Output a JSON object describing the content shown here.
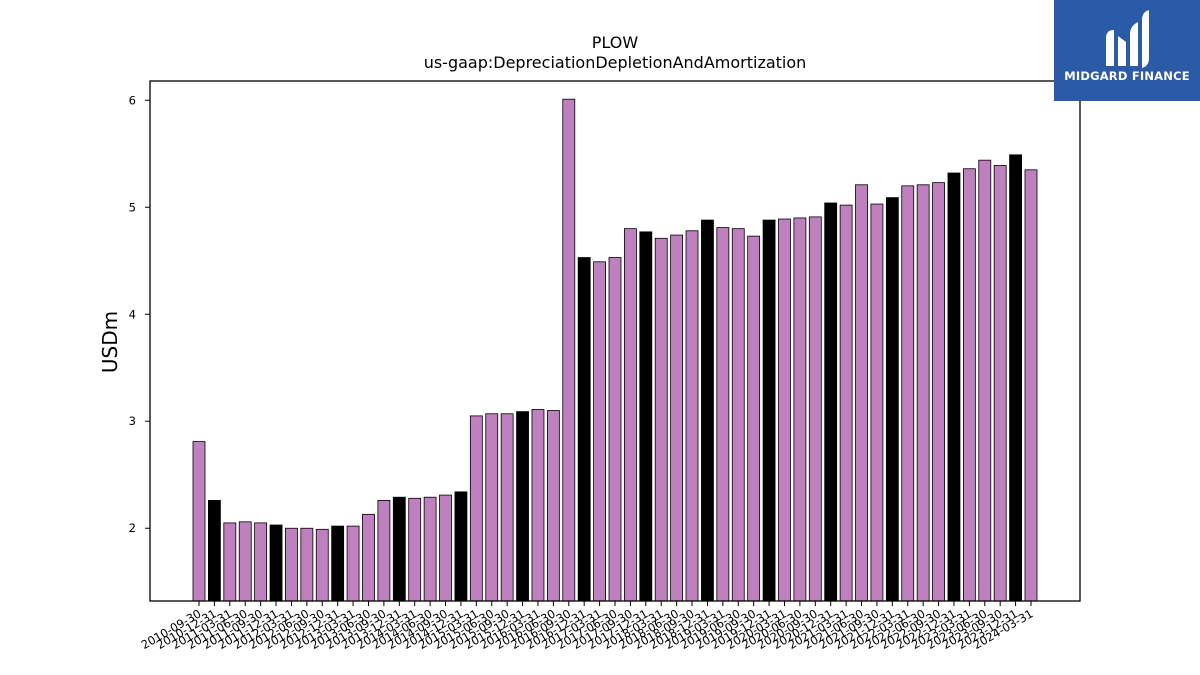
{
  "chart_data": {
    "type": "bar",
    "title": "PLOW",
    "subtitle": "us-gaap:DepreciationDepletionAndAmortization",
    "xlabel": "",
    "ylabel": "USDm",
    "ylim": [
      1.32,
      6.18
    ],
    "yticks": [
      2,
      3,
      4,
      5,
      6
    ],
    "grid": false,
    "colors": {
      "default": "#bf80bf",
      "highlight": "#000000",
      "edge": "#000000"
    },
    "categories": [
      "2010-09-30",
      "2010-12-31",
      "2011-03-31",
      "2011-06-30",
      "2011-09-30",
      "2011-12-31",
      "2012-03-31",
      "2012-06-30",
      "2012-09-30",
      "2012-12-31",
      "2013-03-31",
      "2013-06-30",
      "2013-09-30",
      "2013-12-31",
      "2014-03-31",
      "2014-06-30",
      "2014-09-30",
      "2014-12-31",
      "2015-03-31",
      "2015-06-30",
      "2015-09-30",
      "2015-12-31",
      "2016-03-31",
      "2016-06-30",
      "2016-09-30",
      "2016-12-31",
      "2017-03-31",
      "2017-06-30",
      "2017-09-30",
      "2017-12-31",
      "2018-03-31",
      "2018-06-30",
      "2018-09-30",
      "2018-12-31",
      "2019-03-31",
      "2019-06-30",
      "2019-09-30",
      "2019-12-31",
      "2020-03-31",
      "2020-06-30",
      "2020-09-30",
      "2020-12-31",
      "2021-03-31",
      "2021-06-30",
      "2021-09-30",
      "2021-12-31",
      "2022-03-31",
      "2022-06-30",
      "2022-09-30",
      "2022-12-31",
      "2023-03-31",
      "2023-06-30",
      "2023-09-30",
      "2023-12-31",
      "2024-03-31"
    ],
    "values": [
      2.81,
      2.26,
      2.05,
      2.06,
      2.05,
      2.03,
      2.0,
      2.0,
      1.99,
      2.02,
      2.02,
      2.13,
      2.26,
      2.29,
      2.28,
      2.29,
      2.31,
      2.34,
      3.05,
      3.07,
      3.07,
      3.09,
      3.11,
      3.1,
      6.01,
      4.53,
      4.49,
      4.53,
      4.8,
      4.77,
      4.71,
      4.74,
      4.78,
      4.88,
      4.81,
      4.8,
      4.73,
      4.88,
      4.89,
      4.9,
      4.91,
      5.04,
      5.02,
      5.21,
      5.03,
      5.09,
      5.2,
      5.21,
      5.23,
      5.32,
      5.36,
      5.44,
      5.39,
      5.49,
      5.35
    ],
    "highlight": [
      false,
      true,
      false,
      false,
      false,
      true,
      false,
      false,
      false,
      true,
      false,
      false,
      false,
      true,
      false,
      false,
      false,
      true,
      false,
      false,
      false,
      true,
      false,
      false,
      false,
      true,
      false,
      false,
      false,
      true,
      false,
      false,
      false,
      true,
      false,
      false,
      false,
      true,
      false,
      false,
      false,
      true,
      false,
      false,
      false,
      true,
      false,
      false,
      false,
      true,
      false,
      false,
      false,
      true,
      false
    ]
  },
  "logo": {
    "text": "MIDGARD FINANCE",
    "background": "#2b5aa6"
  }
}
